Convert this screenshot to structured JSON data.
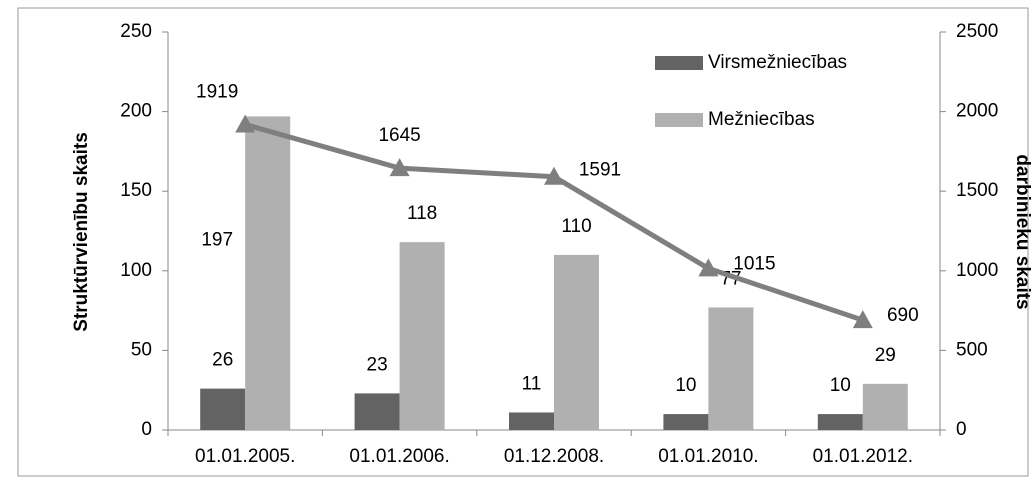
{
  "chart_data": {
    "type": "bar",
    "categories": [
      "01.01.2005.",
      "01.01.2006.",
      "01.12.2008.",
      "01.01.2010.",
      "01.01.2012."
    ],
    "series": [
      {
        "name": "Virsmežniecības",
        "color": "#636363",
        "values": [
          26,
          23,
          11,
          10,
          10
        ]
      },
      {
        "name": "Mežniecības",
        "color": "#b0b0b0",
        "values": [
          197,
          118,
          110,
          77,
          29
        ]
      },
      {
        "type": "line",
        "axis": "y2",
        "color": "#7f7f7f",
        "values": [
          1919,
          1645,
          1591,
          1015,
          690
        ]
      }
    ],
    "ylabel": "Struktūrvienību skaits",
    "y2label": "darbinieku skaits",
    "ylim": [
      0,
      250
    ],
    "yticks": [
      0,
      50,
      100,
      150,
      200,
      250
    ],
    "y2lim": [
      0,
      2500
    ],
    "y2ticks": [
      0,
      500,
      1000,
      1500,
      2000,
      2500
    ],
    "grid": false,
    "legend": "upper right"
  }
}
